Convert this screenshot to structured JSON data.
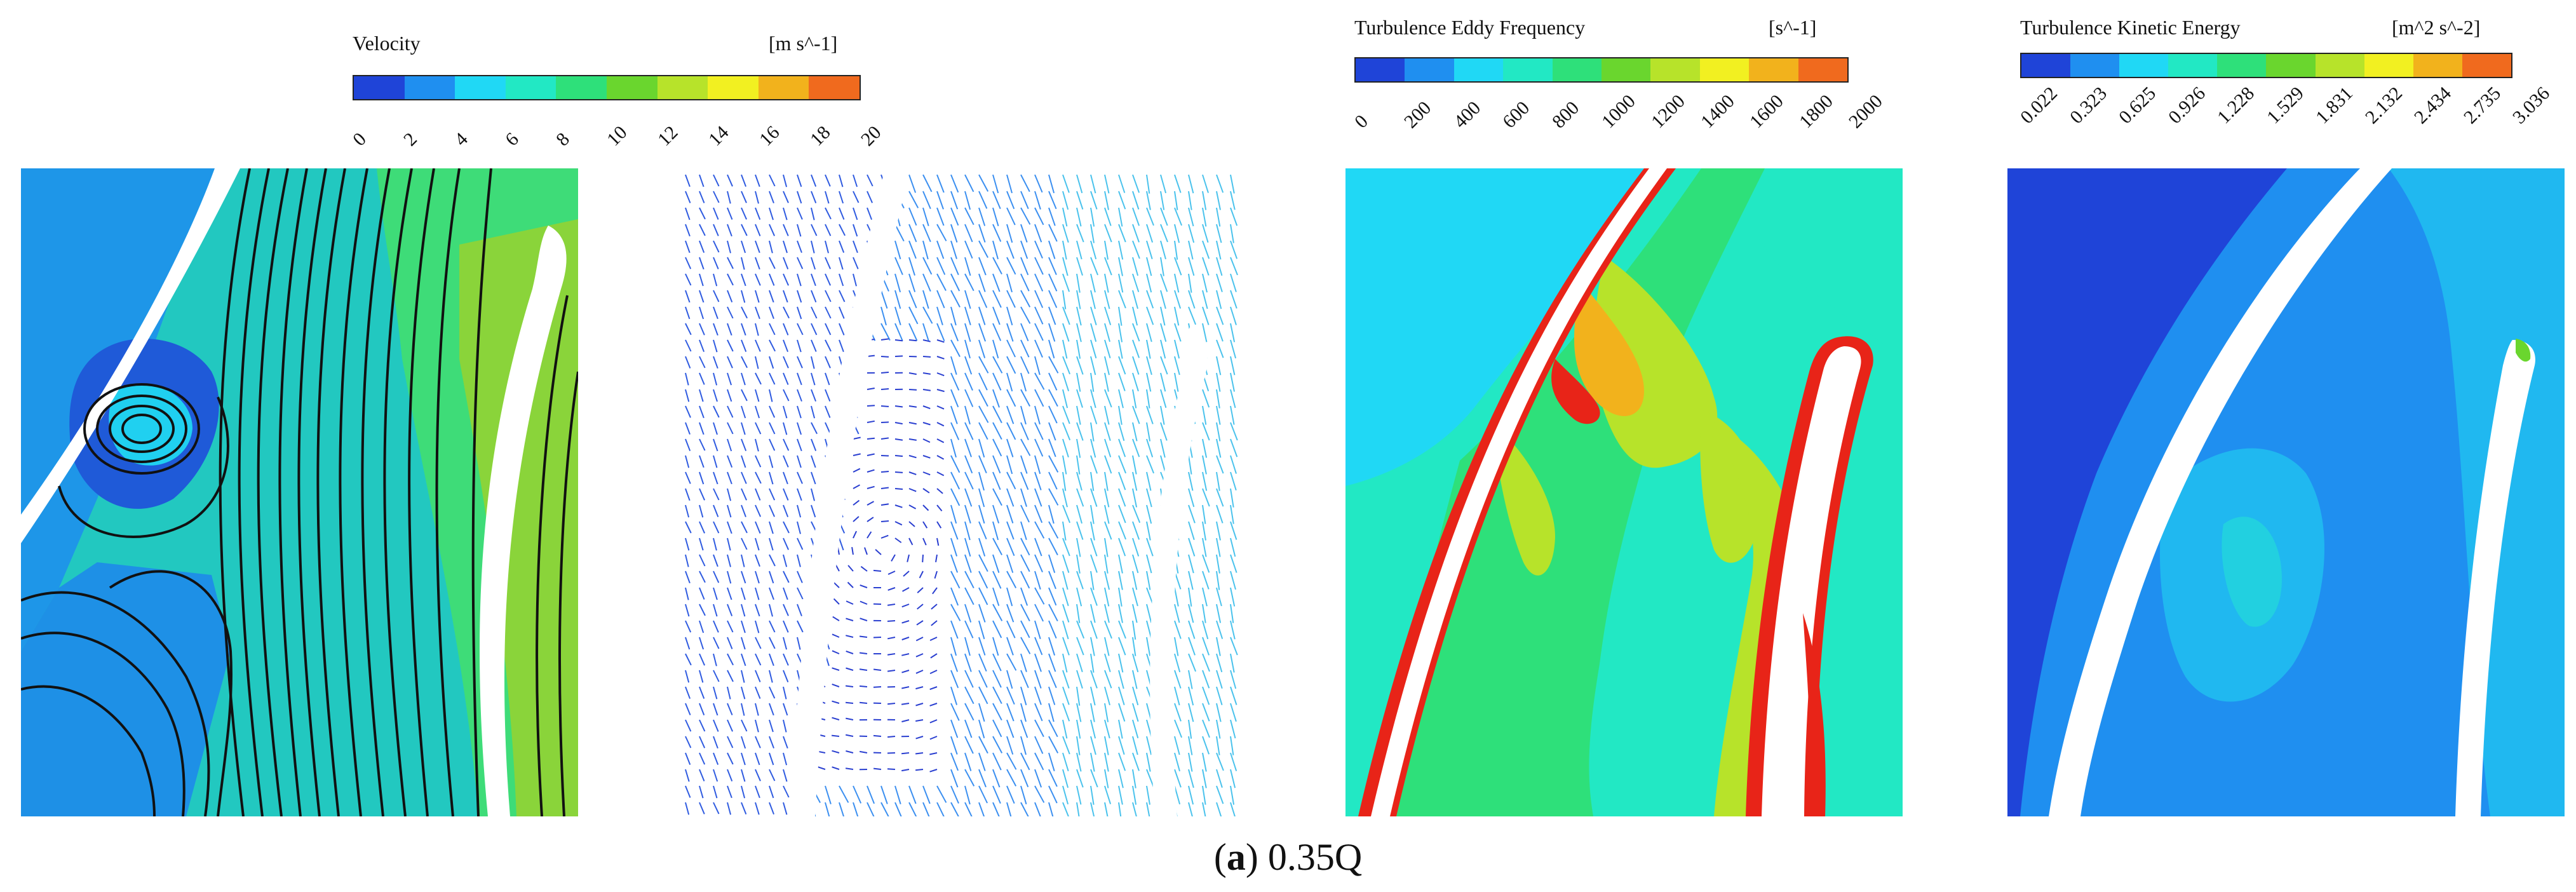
{
  "legends": {
    "velocity": {
      "title": "Velocity",
      "unit": "[m s^-1]",
      "ticks": [
        "0",
        "2",
        "4",
        "6",
        "8",
        "10",
        "12",
        "14",
        "16",
        "18",
        "20"
      ]
    },
    "eddy": {
      "title": "Turbulence Eddy Frequency",
      "unit": "[s^-1]",
      "ticks": [
        "0",
        "200",
        "400",
        "600",
        "800",
        "1000",
        "1200",
        "1400",
        "1600",
        "1800",
        "2000"
      ]
    },
    "tke": {
      "title": "Turbulence Kinetic Energy",
      "unit": "[m^2 s^-2]",
      "ticks": [
        "0.022",
        "0.323",
        "0.625",
        "0.926",
        "1.228",
        "1.529",
        "1.831",
        "2.132",
        "2.434",
        "2.735",
        "3.036"
      ]
    }
  },
  "colormap": [
    "#1f44d8",
    "#1f8ff0",
    "#20d8f5",
    "#22e8c4",
    "#2ee07a",
    "#6ad62e",
    "#b7e32a",
    "#f2f021",
    "#f2b21c",
    "#f06a1e",
    "#e82418"
  ],
  "caption": {
    "label": "a",
    "text": "0.35Q"
  }
}
